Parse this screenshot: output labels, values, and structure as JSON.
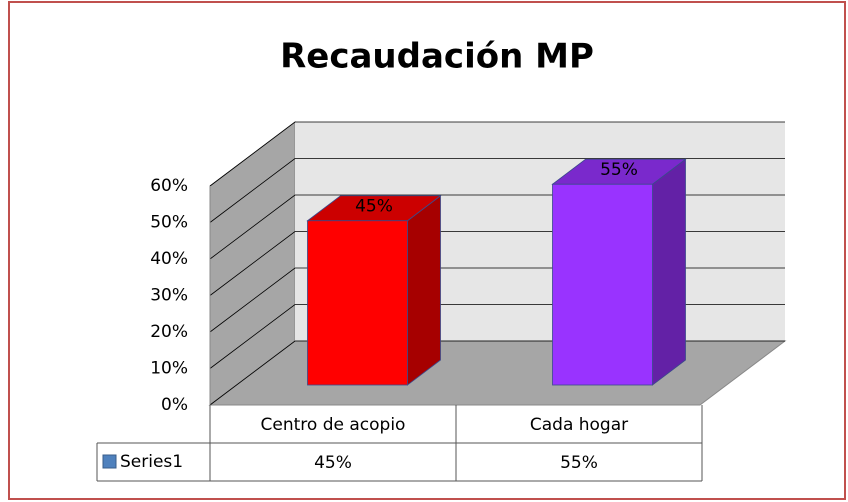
{
  "chart_data": {
    "type": "bar3d",
    "title": "Recaudación MP",
    "categories": [
      "Centro de acopio",
      "Cada hogar"
    ],
    "series": [
      {
        "name": "Series1",
        "color": "#4f81bd",
        "point_colors": [
          "#ff0000",
          "#9933ff"
        ],
        "values": [
          45,
          55
        ],
        "value_labels": [
          "45%",
          "55%"
        ]
      }
    ],
    "ylim": [
      0,
      60
    ],
    "yticks": [
      {
        "value": 0,
        "label": "0%"
      },
      {
        "value": 10,
        "label": "10%"
      },
      {
        "value": 20,
        "label": "20%"
      },
      {
        "value": 30,
        "label": "30%"
      },
      {
        "value": 40,
        "label": "40%"
      },
      {
        "value": 50,
        "label": "50%"
      },
      {
        "value": 60,
        "label": "60%"
      }
    ],
    "grid": true,
    "data_table": true
  }
}
